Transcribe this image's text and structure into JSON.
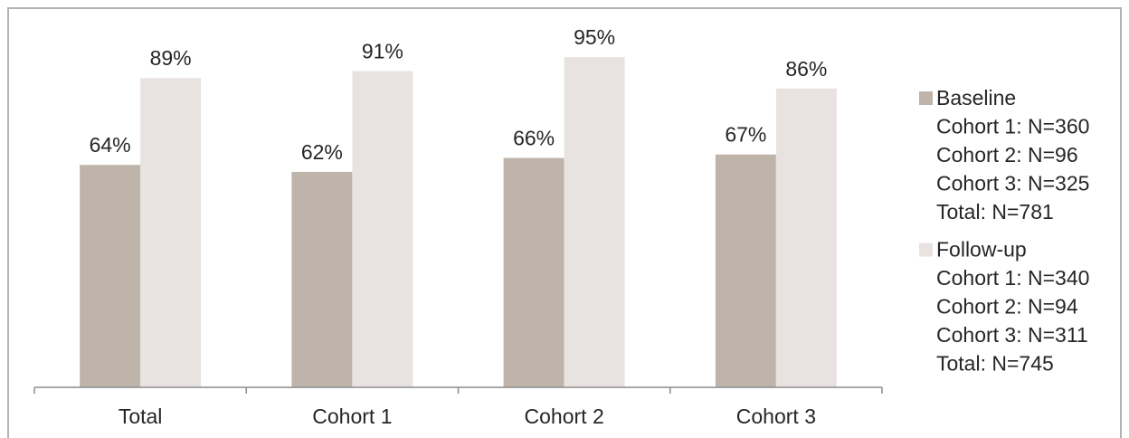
{
  "chart_data": {
    "type": "bar",
    "categories": [
      "Total",
      "Cohort 1",
      "Cohort 2",
      "Cohort 3"
    ],
    "series": [
      {
        "name": "Baseline",
        "values": [
          64,
          62,
          66,
          67
        ],
        "labels": [
          "64%",
          "62%",
          "66%",
          "67%"
        ],
        "color": "#bfb4aa",
        "legend_lines": [
          "Cohort 1: N=360",
          "Cohort 2: N=96",
          "Cohort 3: N=325",
          "Total: N=781"
        ]
      },
      {
        "name": "Follow-up",
        "values": [
          89,
          91,
          95,
          86
        ],
        "labels": [
          "89%",
          "91%",
          "95%",
          "86%"
        ],
        "color": "#e8e3e0",
        "legend_lines": [
          "Cohort 1: N=340",
          "Cohort 2: N=94",
          "Cohort 3: N=311",
          "Total: N=745"
        ]
      }
    ],
    "ylim": [
      0,
      100
    ],
    "grid": false,
    "legend_position": "right"
  }
}
